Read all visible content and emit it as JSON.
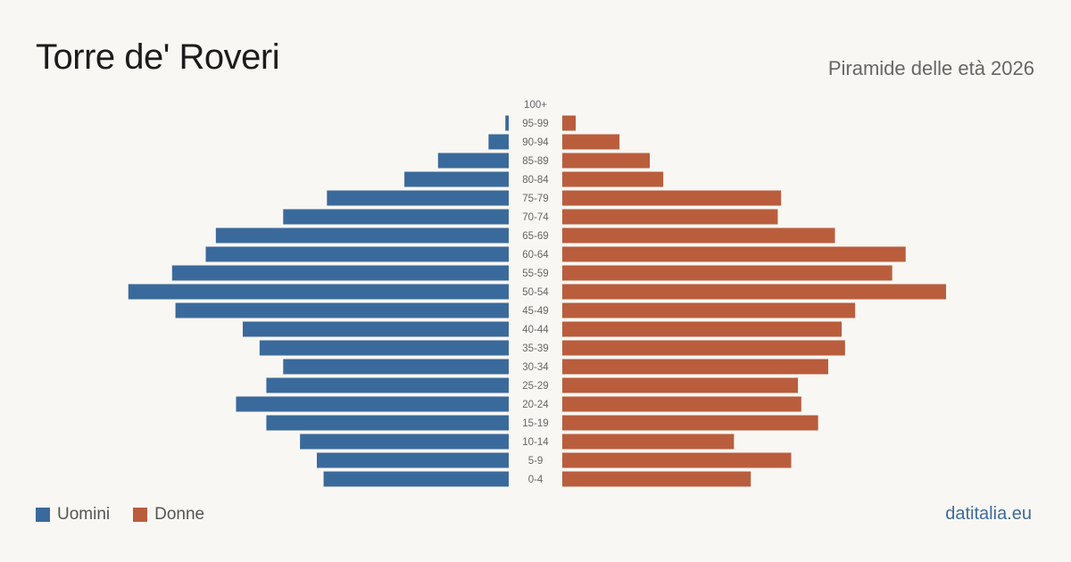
{
  "title": "Torre  de' Roveri",
  "subtitle": "Piramide delle età 2026",
  "brand": "datitalia.eu",
  "legend": {
    "men": "Uomini",
    "women": "Donne"
  },
  "colors": {
    "men": "#3a6a9b",
    "women": "#b95d3d"
  },
  "chart_data": {
    "type": "bar",
    "orientation": "horizontal-pyramid",
    "categories": [
      "100+",
      "95-99",
      "90-94",
      "85-89",
      "80-84",
      "75-79",
      "70-74",
      "65-69",
      "60-64",
      "55-59",
      "50-54",
      "45-49",
      "40-44",
      "35-39",
      "30-34",
      "25-29",
      "20-24",
      "15-19",
      "10-14",
      "5-9",
      "0-4"
    ],
    "series": [
      {
        "name": "Uomini",
        "values": [
          0,
          1,
          6,
          21,
          31,
          54,
          67,
          87,
          90,
          100,
          113,
          99,
          79,
          74,
          67,
          72,
          81,
          72,
          62,
          57,
          55
        ]
      },
      {
        "name": "Donne",
        "values": [
          0,
          4,
          17,
          26,
          30,
          65,
          64,
          81,
          102,
          98,
          114,
          87,
          83,
          84,
          79,
          70,
          71,
          76,
          51,
          68,
          56
        ]
      }
    ]
  }
}
